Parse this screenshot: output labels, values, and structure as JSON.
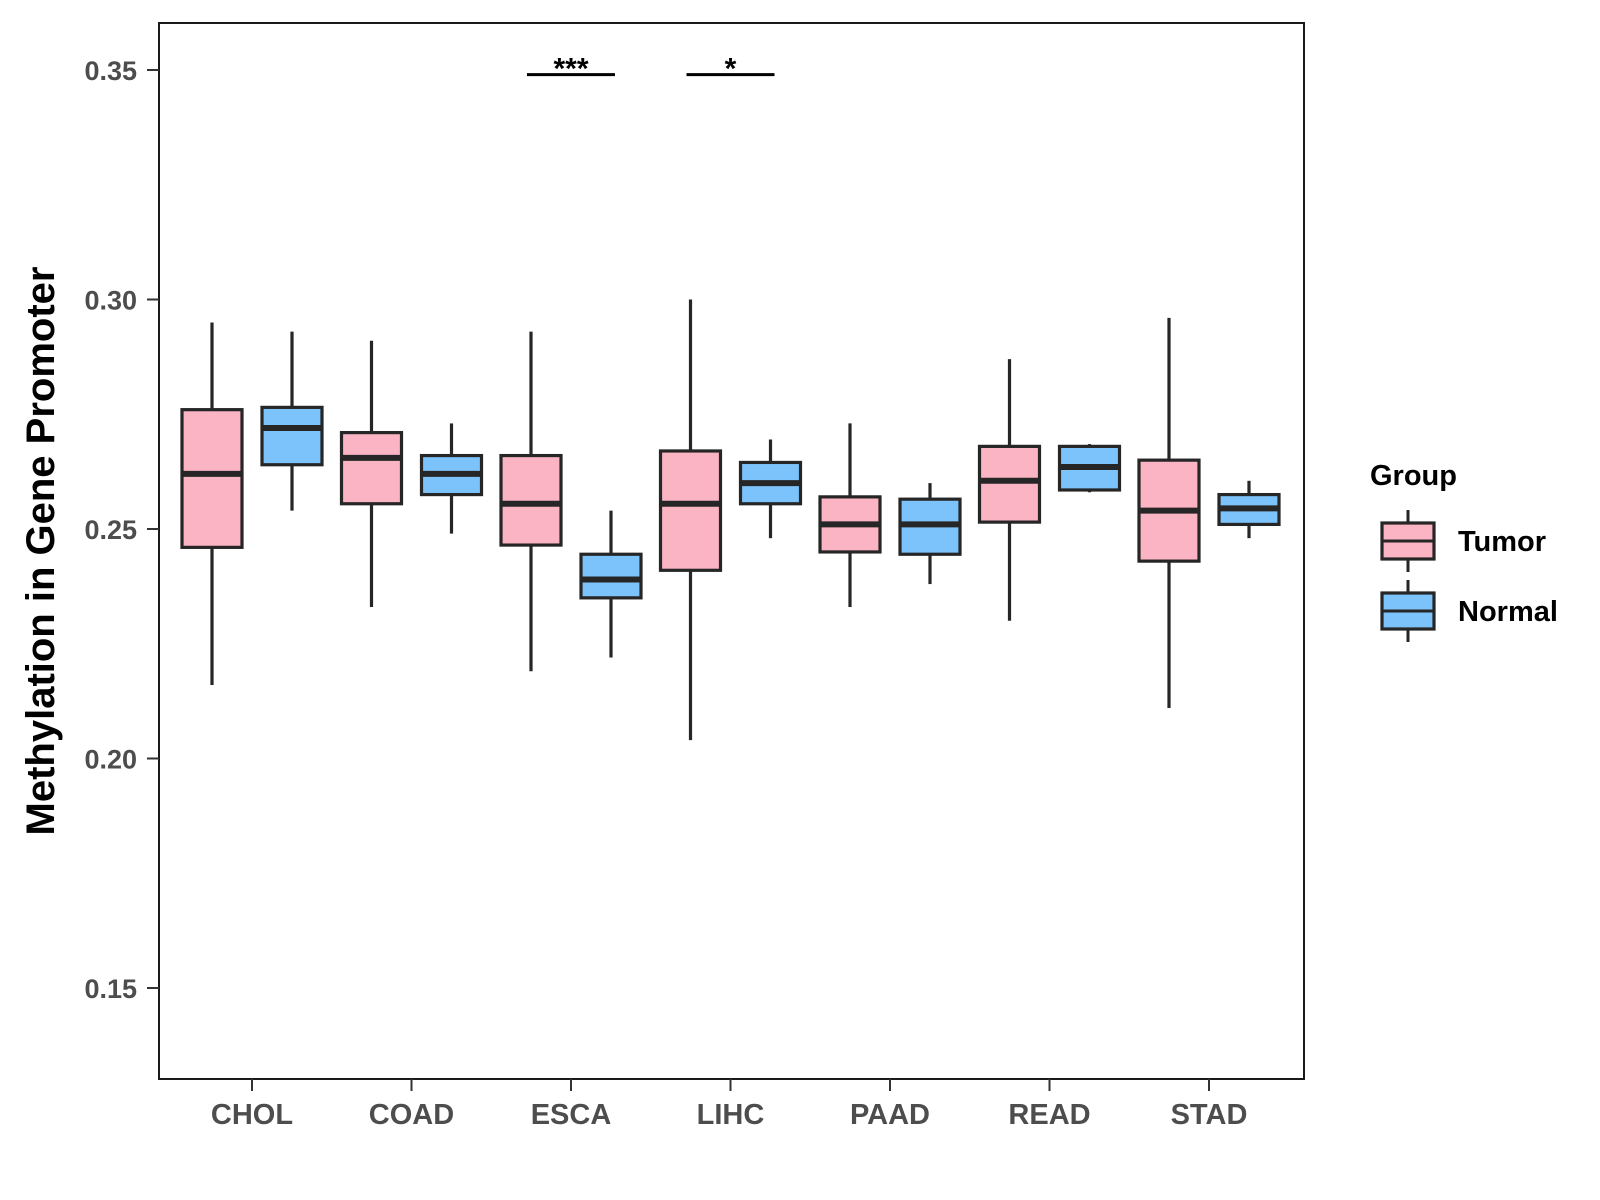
{
  "chart_data": {
    "type": "box",
    "title": "",
    "xlabel": "",
    "ylabel": "Methylation in Gene Promoter",
    "ylim": [
      0.13,
      0.36
    ],
    "yticks": [
      0.15,
      0.2,
      0.25,
      0.3,
      0.35
    ],
    "ytick_labels": [
      "0.15",
      "0.20",
      "0.25",
      "0.30",
      "0.35"
    ],
    "grid": false,
    "categories": [
      "CHOL",
      "COAD",
      "ESCA",
      "LIHC",
      "PAAD",
      "READ",
      "STAD"
    ],
    "legend": {
      "title": "Group",
      "position": "right",
      "entries": [
        {
          "name": "Tumor",
          "color": "#FBB4C4"
        },
        {
          "name": "Normal",
          "color": "#7CC3FB"
        }
      ]
    },
    "series": [
      {
        "name": "Tumor",
        "color": "#FBB4C4",
        "boxes": [
          {
            "category": "CHOL",
            "min": 0.216,
            "q1": 0.246,
            "median": 0.262,
            "q3": 0.276,
            "max": 0.295
          },
          {
            "category": "COAD",
            "min": 0.233,
            "q1": 0.2555,
            "median": 0.2655,
            "q3": 0.271,
            "max": 0.291
          },
          {
            "category": "ESCA",
            "min": 0.219,
            "q1": 0.2465,
            "median": 0.2555,
            "q3": 0.266,
            "max": 0.293
          },
          {
            "category": "LIHC",
            "min": 0.204,
            "q1": 0.241,
            "median": 0.2555,
            "q3": 0.267,
            "max": 0.3
          },
          {
            "category": "PAAD",
            "min": 0.233,
            "q1": 0.245,
            "median": 0.251,
            "q3": 0.257,
            "max": 0.273
          },
          {
            "category": "READ",
            "min": 0.23,
            "q1": 0.2515,
            "median": 0.2605,
            "q3": 0.268,
            "max": 0.287
          },
          {
            "category": "STAD",
            "min": 0.211,
            "q1": 0.243,
            "median": 0.254,
            "q3": 0.265,
            "max": 0.296
          }
        ]
      },
      {
        "name": "Normal",
        "color": "#7CC3FB",
        "boxes": [
          {
            "category": "CHOL",
            "min": 0.254,
            "q1": 0.264,
            "median": 0.272,
            "q3": 0.2765,
            "max": 0.293
          },
          {
            "category": "COAD",
            "min": 0.249,
            "q1": 0.2575,
            "median": 0.262,
            "q3": 0.266,
            "max": 0.273
          },
          {
            "category": "ESCA",
            "min": 0.222,
            "q1": 0.235,
            "median": 0.239,
            "q3": 0.2445,
            "max": 0.254
          },
          {
            "category": "LIHC",
            "min": 0.248,
            "q1": 0.2555,
            "median": 0.26,
            "q3": 0.2645,
            "max": 0.2695
          },
          {
            "category": "PAAD",
            "min": 0.238,
            "q1": 0.2445,
            "median": 0.251,
            "q3": 0.2565,
            "max": 0.26
          },
          {
            "category": "READ",
            "min": 0.258,
            "q1": 0.2585,
            "median": 0.2635,
            "q3": 0.268,
            "max": 0.2685
          },
          {
            "category": "STAD",
            "min": 0.248,
            "q1": 0.251,
            "median": 0.2545,
            "q3": 0.2575,
            "max": 0.2605
          }
        ]
      }
    ],
    "annotations": [
      {
        "category": "ESCA",
        "label": "***",
        "y": 0.349
      },
      {
        "category": "LIHC",
        "label": "*",
        "y": 0.349
      }
    ]
  }
}
